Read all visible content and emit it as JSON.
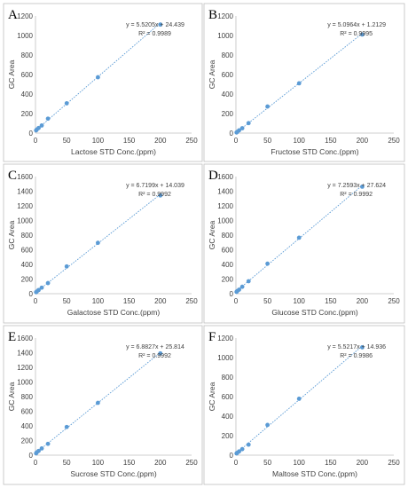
{
  "colors": {
    "point": "#5b9bd5",
    "trendline": "#5b9bd5",
    "axis": "#bfbfbf",
    "text": "#404040"
  },
  "chart_data": [
    {
      "panel": "A",
      "type": "scatter",
      "xlabel": "Lactose STD Conc.(ppm)",
      "ylabel": "GC Area",
      "xlim": [
        0,
        250
      ],
      "ylim": [
        0,
        1200
      ],
      "xticks": [
        0,
        50,
        100,
        150,
        200,
        250
      ],
      "yticks": [
        0,
        200,
        400,
        600,
        800,
        1000,
        1200
      ],
      "x": [
        1,
        2,
        5,
        10,
        20,
        50,
        100,
        200
      ],
      "y": [
        28,
        36,
        52,
        78,
        148,
        305,
        572,
        1112
      ],
      "trendline": {
        "slope": 5.5205,
        "intercept": 24.439
      },
      "equation": "y = 5.5205x + 24.439",
      "r2": "R² = 0.9989"
    },
    {
      "panel": "B",
      "type": "scatter",
      "xlabel": "Fructose STD Conc.(ppm)",
      "ylabel": "GC Area",
      "xlim": [
        0,
        250
      ],
      "ylim": [
        0,
        1200
      ],
      "xticks": [
        0,
        50,
        100,
        150,
        200,
        250
      ],
      "yticks": [
        0,
        200,
        400,
        600,
        800,
        1000,
        1200
      ],
      "x": [
        1,
        2,
        5,
        10,
        20,
        50,
        100,
        200
      ],
      "y": [
        6,
        12,
        28,
        50,
        102,
        272,
        510,
        1010
      ],
      "trendline": {
        "slope": 5.0964,
        "intercept": 1.2129
      },
      "equation": "y = 5.0964x + 1.2129",
      "r2": "R² = 0.9995"
    },
    {
      "panel": "C",
      "type": "scatter",
      "xlabel": "Galactose STD Conc.(ppm)",
      "ylabel": "GC Area",
      "xlim": [
        0,
        250
      ],
      "ylim": [
        0,
        1600
      ],
      "xticks": [
        0,
        50,
        100,
        150,
        200,
        250
      ],
      "yticks": [
        0,
        200,
        400,
        600,
        800,
        1000,
        1200,
        1400,
        1600
      ],
      "x": [
        1,
        2,
        5,
        10,
        20,
        50,
        100,
        200
      ],
      "y": [
        20,
        28,
        50,
        82,
        145,
        372,
        695,
        1342
      ],
      "trendline": {
        "slope": 6.7199,
        "intercept": 14.039
      },
      "equation": "y = 6.7199x + 14.039",
      "r2": "R² = 0.9992"
    },
    {
      "panel": "D",
      "type": "scatter",
      "xlabel": "Glucose STD Conc.(ppm)",
      "ylabel": "GC Area",
      "xlim": [
        0,
        250
      ],
      "ylim": [
        0,
        1600
      ],
      "xticks": [
        0,
        50,
        100,
        150,
        200,
        250
      ],
      "yticks": [
        0,
        200,
        400,
        600,
        800,
        1000,
        1200,
        1400,
        1600
      ],
      "x": [
        1,
        2,
        5,
        10,
        20,
        50,
        100,
        200
      ],
      "y": [
        25,
        35,
        55,
        95,
        170,
        410,
        765,
        1462
      ],
      "trendline": {
        "slope": 7.2593,
        "intercept": 27.624
      },
      "equation": "y = 7.2593x + 27.624",
      "r2": "R² = 0.9992"
    },
    {
      "panel": "E",
      "type": "scatter",
      "xlabel": "Sucrose STD Conc.(ppm)",
      "ylabel": "GC Area",
      "xlim": [
        0,
        250
      ],
      "ylim": [
        0,
        1600
      ],
      "xticks": [
        0,
        50,
        100,
        150,
        200,
        250
      ],
      "yticks": [
        0,
        200,
        400,
        600,
        800,
        1000,
        1200,
        1400,
        1600
      ],
      "x": [
        1,
        2,
        5,
        10,
        20,
        50,
        100,
        200
      ],
      "y": [
        25,
        38,
        58,
        92,
        155,
        385,
        715,
        1390
      ],
      "trendline": {
        "slope": 6.8827,
        "intercept": 25.814
      },
      "equation": "y = 6.8827x + 25.814",
      "r2": "R² = 0.9992"
    },
    {
      "panel": "F",
      "type": "scatter",
      "xlabel": "Maltose STD Conc.(ppm)",
      "ylabel": "GC Area",
      "xlim": [
        0,
        250
      ],
      "ylim": [
        0,
        1200
      ],
      "xticks": [
        0,
        50,
        100,
        150,
        200,
        250
      ],
      "yticks": [
        0,
        200,
        400,
        600,
        800,
        1000,
        1200
      ],
      "x": [
        1,
        2,
        5,
        10,
        20,
        50,
        100,
        200
      ],
      "y": [
        18,
        24,
        38,
        62,
        108,
        310,
        578,
        1105
      ],
      "trendline": {
        "slope": 5.5217,
        "intercept": 14.936
      },
      "equation": "y = 5.5217x + 14.936",
      "r2": "R² = 0.9986"
    }
  ]
}
